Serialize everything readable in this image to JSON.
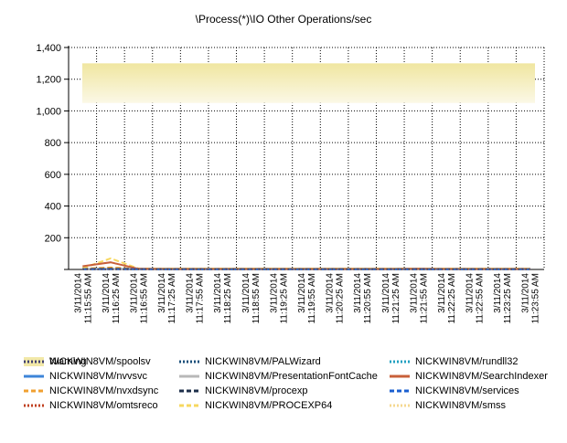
{
  "chart_data": {
    "type": "line",
    "title": "\\Process(*)\\IO Other Operations/sec",
    "xlabel": "",
    "ylabel": "",
    "ylim": [
      0,
      1400
    ],
    "yticks": [
      "1,400",
      "1,200",
      "1,000",
      "800",
      "600",
      "400",
      "200",
      ""
    ],
    "ytick_values": [
      1400,
      1200,
      1000,
      800,
      600,
      400,
      200,
      0
    ],
    "grid": true,
    "legend_position": "bottom",
    "categories": [
      "3/11/2014 11:15:55 AM",
      "3/11/2014 11:16:25 AM",
      "3/11/2014 11:16:55 AM",
      "3/11/2014 11:17:25 AM",
      "3/11/2014 11:17:55 AM",
      "3/11/2014 11:18:25 AM",
      "3/11/2014 11:18:55 AM",
      "3/11/2014 11:19:25 AM",
      "3/11/2014 11:19:55 AM",
      "3/11/2014 11:20:25 AM",
      "3/11/2014 11:20:55 AM",
      "3/11/2014 11:21:25 AM",
      "3/11/2014 11:21:55 AM",
      "3/11/2014 11:22:25 AM",
      "3/11/2014 11:22:55 AM",
      "3/11/2014 11:23:25 AM",
      "3/11/2014 11:23:55 AM"
    ],
    "warning_band": {
      "name": "Warning",
      "from": 1050,
      "to": 1300,
      "color": "#f2e8a8"
    },
    "series": [
      {
        "name": "NICKWIN8VM/nvvsvc",
        "color": "#3d85d8",
        "dash": "solid",
        "values": [
          2,
          3,
          2,
          2,
          2,
          2,
          2,
          2,
          2,
          2,
          2,
          2,
          2,
          2,
          2,
          2,
          2
        ]
      },
      {
        "name": "NICKWIN8VM/nvxdsync",
        "color": "#f0a030",
        "dash": "dash",
        "values": [
          5,
          12,
          4,
          5,
          5,
          5,
          5,
          5,
          5,
          5,
          5,
          5,
          5,
          5,
          5,
          5,
          5
        ]
      },
      {
        "name": "NICKWIN8VM/omtsreco",
        "color": "#c04020",
        "dash": "dot",
        "values": [
          2,
          2,
          2,
          2,
          2,
          2,
          2,
          2,
          2,
          2,
          2,
          2,
          2,
          2,
          2,
          2,
          2
        ]
      },
      {
        "name": "NICKWIN8VM/PALWizard",
        "color": "#1a4f7a",
        "dash": "dot",
        "values": [
          1,
          1,
          1,
          1,
          1,
          1,
          1,
          1,
          1,
          1,
          1,
          1,
          1,
          1,
          1,
          1,
          1
        ]
      },
      {
        "name": "NICKWIN8VM/PresentationFontCache",
        "color": "#b8b8b8",
        "dash": "solid",
        "values": [
          1,
          1,
          1,
          1,
          1,
          1,
          1,
          1,
          1,
          1,
          1,
          1,
          1,
          1,
          1,
          1,
          1
        ]
      },
      {
        "name": "NICKWIN8VM/procexp",
        "color": "#1c2e4a",
        "dash": "dash",
        "values": [
          3,
          4,
          3,
          3,
          3,
          3,
          3,
          3,
          3,
          3,
          3,
          3,
          3,
          3,
          3,
          3,
          3
        ]
      },
      {
        "name": "NICKWIN8VM/PROCEXP64",
        "color": "#f7d860",
        "dash": "dash",
        "values": [
          8,
          70,
          6,
          6,
          6,
          6,
          6,
          6,
          6,
          6,
          6,
          6,
          6,
          6,
          6,
          6,
          6
        ]
      },
      {
        "name": "NICKWIN8VM/rundll32",
        "color": "#20a0c0",
        "dash": "dot",
        "values": [
          1,
          1,
          1,
          1,
          1,
          1,
          1,
          1,
          1,
          1,
          1,
          1,
          1,
          1,
          1,
          1,
          1
        ]
      },
      {
        "name": "NICKWIN8VM/SearchIndexer",
        "color": "#c8603a",
        "dash": "solid",
        "values": [
          20,
          45,
          4,
          3,
          3,
          3,
          3,
          3,
          3,
          3,
          3,
          3,
          4,
          3,
          3,
          3,
          3
        ]
      },
      {
        "name": "NICKWIN8VM/services",
        "color": "#1a5fd0",
        "dash": "dash",
        "values": [
          2,
          2,
          2,
          2,
          2,
          2,
          2,
          2,
          2,
          2,
          2,
          2,
          2,
          2,
          2,
          2,
          2
        ]
      },
      {
        "name": "NICKWIN8VM/smss",
        "color": "#f5d890",
        "dash": "dot",
        "values": [
          0,
          0,
          0,
          0,
          0,
          0,
          0,
          0,
          0,
          0,
          0,
          0,
          0,
          0,
          0,
          0,
          0
        ]
      },
      {
        "name": "NICKWIN8VM/spoolsv",
        "color": "#404070",
        "dash": "dot",
        "values": [
          1,
          1,
          1,
          1,
          1,
          1,
          1,
          1,
          1,
          1,
          1,
          1,
          1,
          1,
          1,
          1,
          1
        ]
      }
    ]
  }
}
